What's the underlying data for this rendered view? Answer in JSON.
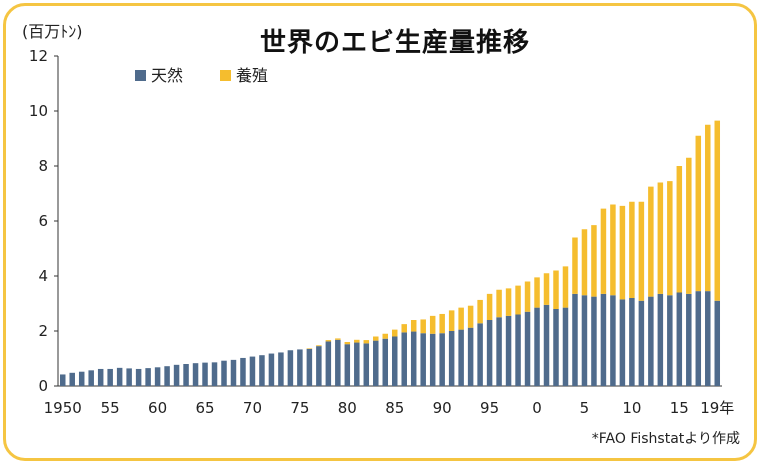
{
  "chart_data": {
    "type": "bar",
    "stacked": true,
    "title": "世界のエビ生産量推移",
    "unit_label": "(百万ﾄﾝ)",
    "source": "*FAO Fishstatより作成",
    "ylim": [
      0,
      12
    ],
    "yticks": [
      "0",
      "2",
      "4",
      "6",
      "8",
      "10",
      "12"
    ],
    "years": [
      1950,
      1951,
      1952,
      1953,
      1954,
      1955,
      1956,
      1957,
      1958,
      1959,
      1960,
      1961,
      1962,
      1963,
      1964,
      1965,
      1966,
      1967,
      1968,
      1969,
      1970,
      1971,
      1972,
      1973,
      1974,
      1975,
      1976,
      1977,
      1978,
      1979,
      1980,
      1981,
      1982,
      1983,
      1984,
      1985,
      1986,
      1987,
      1988,
      1989,
      1990,
      1991,
      1992,
      1993,
      1994,
      1995,
      1996,
      1997,
      1998,
      1999,
      2000,
      2001,
      2002,
      2003,
      2004,
      2005,
      2006,
      2007,
      2008,
      2009,
      2010,
      2011,
      2012,
      2013,
      2014,
      2015,
      2016,
      2017,
      2018,
      2019
    ],
    "xtick_labels": [
      {
        "year": 1950,
        "label": "1950"
      },
      {
        "year": 1955,
        "label": "55"
      },
      {
        "year": 1960,
        "label": "60"
      },
      {
        "year": 1965,
        "label": "65"
      },
      {
        "year": 1970,
        "label": "70"
      },
      {
        "year": 1975,
        "label": "75"
      },
      {
        "year": 1980,
        "label": "80"
      },
      {
        "year": 1985,
        "label": "85"
      },
      {
        "year": 1990,
        "label": "90"
      },
      {
        "year": 1995,
        "label": "95"
      },
      {
        "year": 2000,
        "label": "0"
      },
      {
        "year": 2005,
        "label": "5"
      },
      {
        "year": 2010,
        "label": "10"
      },
      {
        "year": 2015,
        "label": "15"
      },
      {
        "year": 2019,
        "label": "19年"
      }
    ],
    "series": [
      {
        "name": "天然",
        "color": "#4f6b8c",
        "values": [
          0.42,
          0.48,
          0.52,
          0.57,
          0.62,
          0.62,
          0.66,
          0.64,
          0.62,
          0.65,
          0.68,
          0.72,
          0.77,
          0.8,
          0.83,
          0.85,
          0.86,
          0.92,
          0.95,
          1.02,
          1.07,
          1.12,
          1.18,
          1.22,
          1.3,
          1.33,
          1.35,
          1.45,
          1.62,
          1.68,
          1.52,
          1.58,
          1.55,
          1.65,
          1.72,
          1.8,
          1.95,
          1.98,
          1.92,
          1.9,
          1.92,
          2.0,
          2.05,
          2.12,
          2.28,
          2.4,
          2.5,
          2.55,
          2.6,
          2.7,
          2.85,
          2.95,
          2.8,
          2.85,
          3.35,
          3.3,
          3.25,
          3.35,
          3.3,
          3.15,
          3.2,
          3.1,
          3.25,
          3.35,
          3.3,
          3.4,
          3.35,
          3.45,
          3.45,
          3.1
        ]
      },
      {
        "name": "養殖",
        "color": "#f5bd2e",
        "values": [
          0,
          0,
          0,
          0,
          0,
          0,
          0,
          0,
          0,
          0,
          0,
          0,
          0,
          0,
          0,
          0,
          0,
          0,
          0,
          0,
          0,
          0,
          0,
          0,
          0,
          0,
          0.02,
          0.03,
          0.05,
          0.05,
          0.08,
          0.1,
          0.12,
          0.15,
          0.18,
          0.25,
          0.3,
          0.42,
          0.5,
          0.65,
          0.7,
          0.75,
          0.8,
          0.8,
          0.85,
          0.95,
          1.0,
          1.0,
          1.05,
          1.1,
          1.1,
          1.15,
          1.4,
          1.5,
          2.05,
          2.4,
          2.6,
          3.1,
          3.3,
          3.4,
          3.5,
          3.6,
          4.0,
          4.05,
          4.15,
          4.6,
          4.95,
          5.65,
          6.05,
          6.55
        ]
      }
    ]
  }
}
